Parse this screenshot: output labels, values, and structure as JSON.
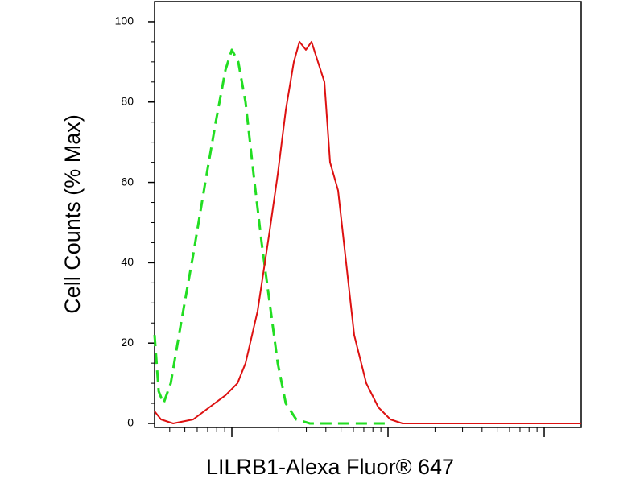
{
  "chart_data": {
    "type": "line",
    "xlabel": "LILRB1-Alexa Fluor® 647",
    "ylabel": "Cell Counts (% Max)",
    "xscale": "log",
    "xlim": [
      320,
      172600
    ],
    "xticks": [
      1000,
      10000,
      100000
    ],
    "ylim": [
      -1,
      105
    ],
    "yticks": [
      0,
      20,
      40,
      60,
      80,
      100
    ],
    "series": [
      {
        "color": "#22dd22",
        "dashed": true,
        "x": [
          320,
          340,
          365,
          406,
          473,
          566,
          676,
          789,
          910,
          1000,
          1100,
          1224,
          1378,
          1552,
          1747,
          1967,
          2215,
          2584,
          3162,
          9770
        ],
        "values": [
          22,
          8,
          5,
          10,
          25,
          42,
          60,
          75,
          88,
          93,
          90,
          80,
          62,
          45,
          30,
          15,
          5,
          1,
          0,
          0
        ]
      },
      {
        "color": "#dd1111",
        "dashed": false,
        "x": [
          320,
          352,
          421,
          566,
          717,
          910,
          1087,
          1224,
          1462,
          1747,
          1967,
          2215,
          2494,
          2710,
          2979,
          3237,
          3562,
          3914,
          4254,
          4789,
          5395,
          6075,
          7258,
          8670,
          10360,
          12380,
          25230,
          172600
        ],
        "values": [
          3,
          1,
          0,
          1,
          4,
          7,
          10,
          15,
          28,
          48,
          62,
          78,
          90,
          95,
          93,
          95,
          90,
          85,
          65,
          58,
          40,
          22,
          10,
          4,
          1,
          0,
          0,
          0
        ]
      }
    ]
  }
}
